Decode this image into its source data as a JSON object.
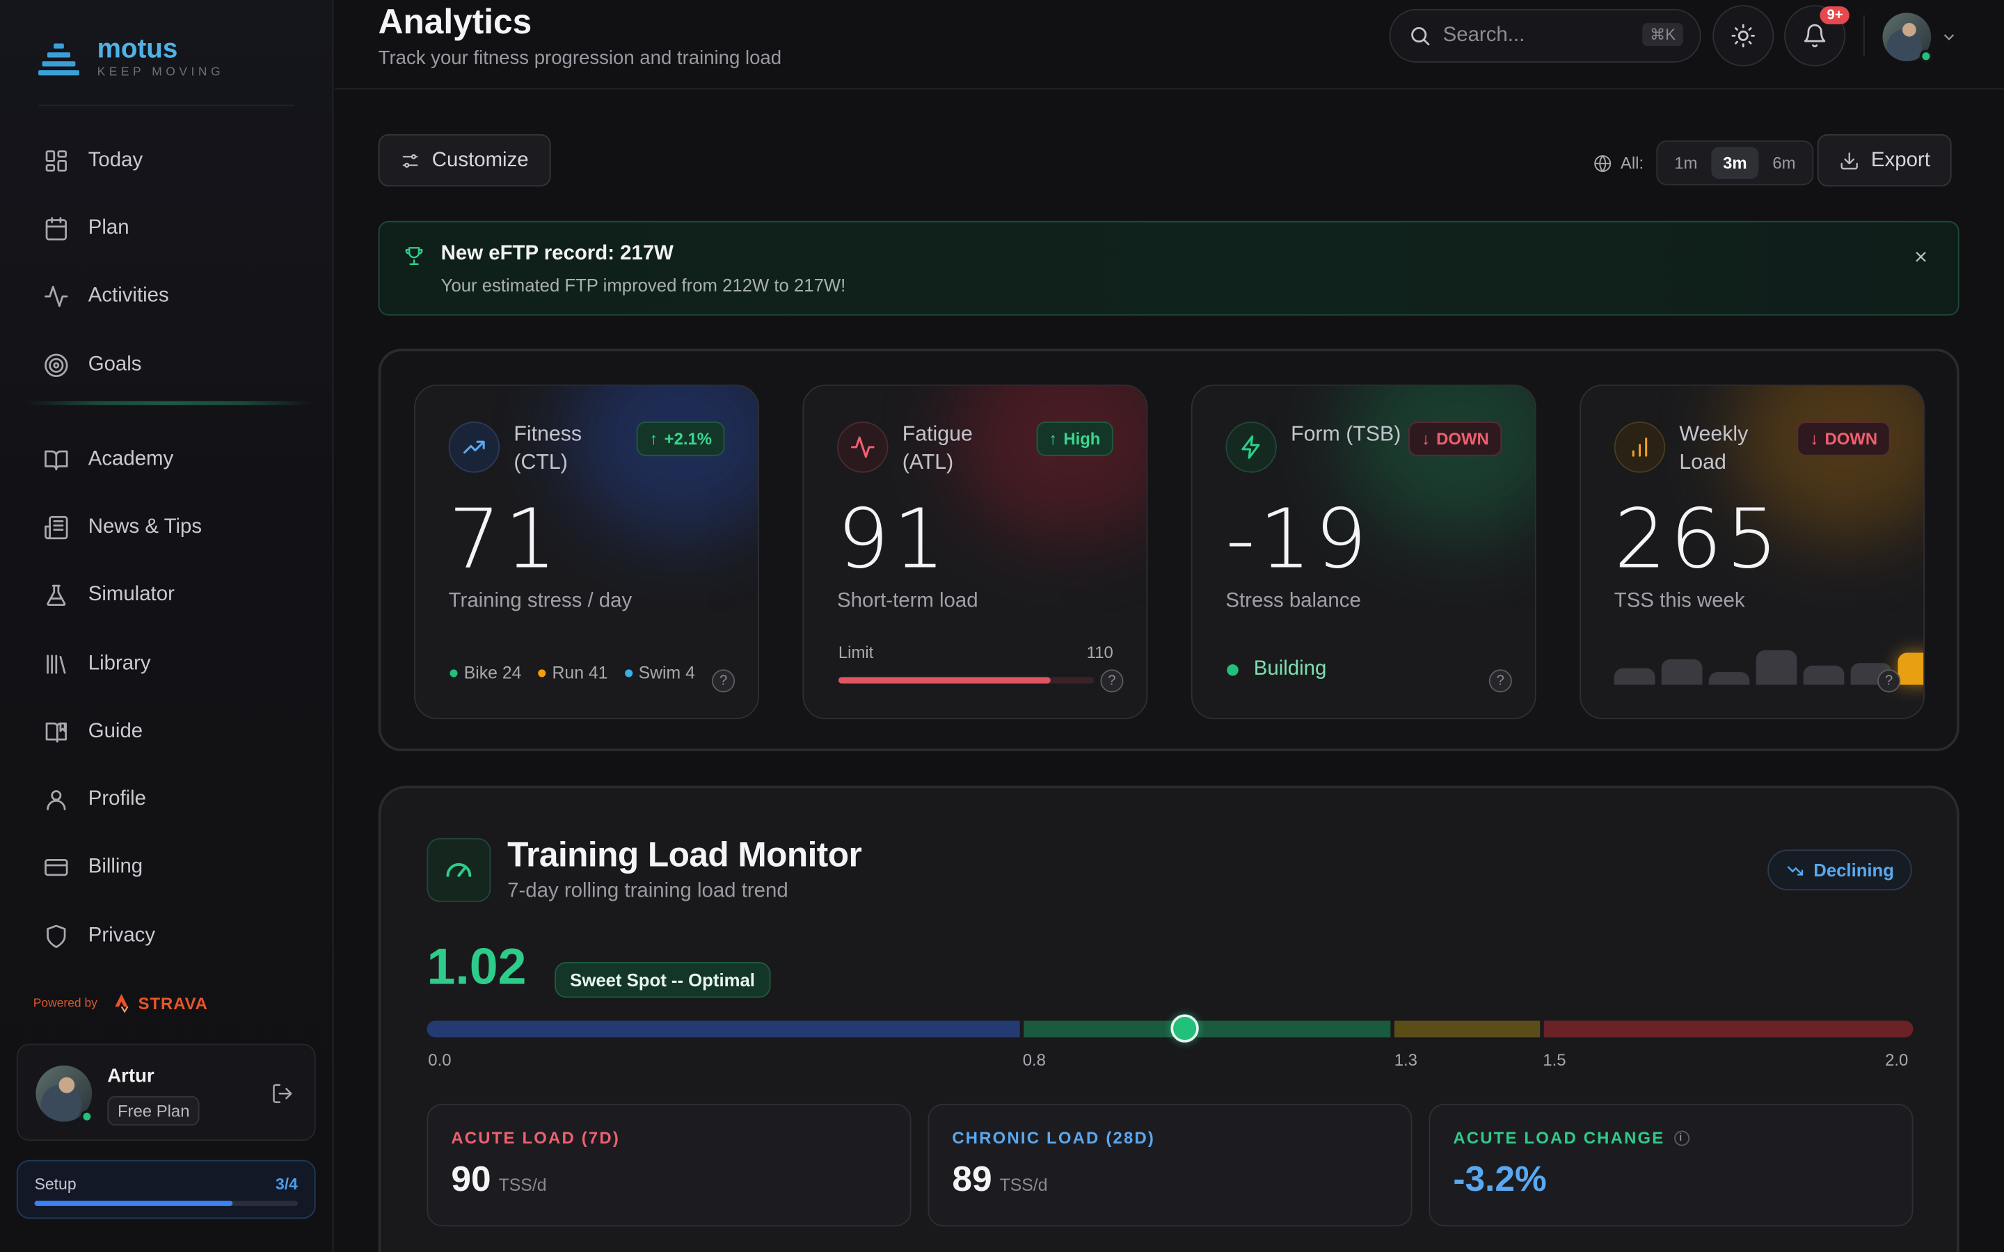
{
  "brand": {
    "name": "motus",
    "tagline": "KEEP MOVING"
  },
  "sidebar": {
    "items": [
      {
        "label": "Today",
        "icon": "dashboard-icon"
      },
      {
        "label": "Plan",
        "icon": "calendar-icon"
      },
      {
        "label": "Activities",
        "icon": "activity-icon"
      },
      {
        "label": "Goals",
        "icon": "target-icon"
      },
      {
        "label": "Academy",
        "icon": "book-open-icon"
      },
      {
        "label": "News & Tips",
        "icon": "newspaper-icon"
      },
      {
        "label": "Simulator",
        "icon": "flask-icon"
      },
      {
        "label": "Library",
        "icon": "library-icon"
      },
      {
        "label": "Guide",
        "icon": "book-bookmark-icon"
      },
      {
        "label": "Profile",
        "icon": "user-icon"
      },
      {
        "label": "Billing",
        "icon": "credit-card-icon"
      },
      {
        "label": "Privacy",
        "icon": "shield-icon"
      }
    ],
    "powered_by": "Powered by",
    "partner": "STRAVA",
    "user": {
      "name": "Artur",
      "plan": "Free Plan"
    },
    "setup": {
      "label": "Setup",
      "count": "3/4",
      "progress": 0.75
    }
  },
  "header": {
    "title": "Analytics",
    "subtitle": "Track your fitness progression and training load",
    "search_placeholder": "Search...",
    "search_shortcut": "⌘K",
    "notifications": "9+"
  },
  "toolbar": {
    "customize": "Customize",
    "range_label": "All:",
    "ranges": [
      "1m",
      "3m",
      "6m"
    ],
    "active_range": "3m",
    "export": "Export"
  },
  "banner": {
    "title": "New eFTP record: 217W",
    "text": "Your estimated FTP improved from 212W to 217W!"
  },
  "metrics": {
    "fitness": {
      "label": "Fitness (CTL)",
      "badge": "+2.1%",
      "value": "71",
      "desc": "Training stress / day",
      "legend": [
        {
          "label": "Bike 24",
          "color": "#22c07a"
        },
        {
          "label": "Run 41",
          "color": "#f59e0b"
        },
        {
          "label": "Swim 4",
          "color": "#3ab0e8"
        }
      ]
    },
    "fatigue": {
      "label": "Fatigue (ATL)",
      "badge": "High",
      "value": "91",
      "desc": "Short-term load",
      "limit_label": "Limit",
      "limit_value": "110",
      "limit_fraction": 0.83
    },
    "form": {
      "label": "Form (TSB)",
      "badge": "DOWN",
      "value": "-19",
      "desc": "Stress balance",
      "status": "Building"
    },
    "weekly": {
      "label": "Weekly Load",
      "badge": "DOWN",
      "value": "265",
      "desc": "TSS this week",
      "bars": [
        0.45,
        0.7,
        0.35,
        0.95,
        0.55,
        0.6,
        0.9
      ]
    }
  },
  "monitor": {
    "title": "Training Load Monitor",
    "subtitle": "7-day rolling training load trend",
    "trend": "Declining",
    "ratio": "1.02",
    "ratio_value": 1.02,
    "zone": "Sweet Spot -- Optimal",
    "scale_min": 0.0,
    "scale_max": 2.0,
    "zones": [
      {
        "from": 0.0,
        "to": 0.8,
        "color": "#243a72"
      },
      {
        "from": 0.8,
        "to": 1.3,
        "color": "#1a5a3e"
      },
      {
        "from": 1.3,
        "to": 1.5,
        "color": "#5a4d18"
      },
      {
        "from": 1.5,
        "to": 2.0,
        "color": "#6a2226"
      }
    ],
    "ticks": [
      {
        "label": "0.0",
        "value": 0.0
      },
      {
        "label": "0.8",
        "value": 0.8
      },
      {
        "label": "1.3",
        "value": 1.3
      },
      {
        "label": "1.5",
        "value": 1.5
      },
      {
        "label": "2.0",
        "value": 2.0
      }
    ],
    "cards": [
      {
        "label": "ACUTE LOAD (7D)",
        "value": "90",
        "unit": "TSS/d",
        "color": "#f06070"
      },
      {
        "label": "CHRONIC LOAD (28D)",
        "value": "89",
        "unit": "TSS/d",
        "color": "#5aa8f0"
      },
      {
        "label": "ACUTE LOAD CHANGE",
        "value": "-3.2%",
        "unit": "",
        "color": "#2ecc8a"
      }
    ]
  }
}
